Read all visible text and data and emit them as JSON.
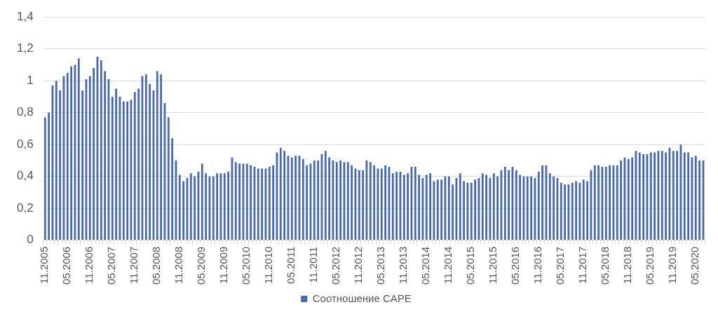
{
  "chart_data": {
    "type": "bar",
    "categories": [
      "11.2005",
      null,
      null,
      null,
      null,
      null,
      "05.2006",
      null,
      null,
      null,
      null,
      null,
      "11.2006",
      null,
      null,
      null,
      null,
      null,
      "05.2007",
      null,
      null,
      null,
      null,
      null,
      "11.2007",
      null,
      null,
      null,
      null,
      null,
      "05.2008",
      null,
      null,
      null,
      null,
      null,
      "11.2008",
      null,
      null,
      null,
      null,
      null,
      "05.2009",
      null,
      null,
      null,
      null,
      null,
      "11.2009",
      null,
      null,
      null,
      null,
      null,
      "05.2010",
      null,
      null,
      null,
      null,
      null,
      "11.2010",
      null,
      null,
      null,
      null,
      null,
      "05.2011",
      null,
      null,
      null,
      null,
      null,
      "11.2011",
      null,
      null,
      null,
      null,
      null,
      "05.2012",
      null,
      null,
      null,
      null,
      null,
      "11.2012",
      null,
      null,
      null,
      null,
      null,
      "05.2013",
      null,
      null,
      null,
      null,
      null,
      "11.2013",
      null,
      null,
      null,
      null,
      null,
      "05.2014",
      null,
      null,
      null,
      null,
      null,
      "11.2014",
      null,
      null,
      null,
      null,
      null,
      "05.2015",
      null,
      null,
      null,
      null,
      null,
      "11.2015",
      null,
      null,
      null,
      null,
      null,
      "05.2016",
      null,
      null,
      null,
      null,
      null,
      "11.2016",
      null,
      null,
      null,
      null,
      null,
      "05.2017",
      null,
      null,
      null,
      null,
      null,
      "11.2017",
      null,
      null,
      null,
      null,
      null,
      "05.2018",
      null,
      null,
      null,
      null,
      null,
      "11.2018",
      null,
      null,
      null,
      null,
      null,
      "05.2019",
      null,
      null,
      null,
      null,
      null,
      "11.2019",
      null,
      null,
      null,
      null,
      null,
      "05.2020",
      null,
      null
    ],
    "series": [
      {
        "name": "Соотношение CAPE",
        "color": "#4a69ad",
        "values": [
          0.77,
          0.8,
          0.97,
          1.0,
          0.94,
          1.03,
          1.05,
          1.09,
          1.1,
          1.14,
          0.94,
          1.01,
          1.03,
          1.08,
          1.15,
          1.13,
          1.06,
          1.01,
          0.9,
          0.95,
          0.9,
          0.87,
          0.87,
          0.88,
          0.93,
          0.95,
          1.03,
          1.04,
          0.98,
          0.94,
          1.06,
          1.04,
          0.86,
          0.77,
          0.64,
          0.5,
          0.41,
          0.37,
          0.39,
          0.42,
          0.4,
          0.43,
          0.48,
          0.42,
          0.4,
          0.4,
          0.42,
          0.42,
          0.42,
          0.43,
          0.52,
          0.49,
          0.48,
          0.48,
          0.48,
          0.47,
          0.46,
          0.45,
          0.45,
          0.45,
          0.46,
          0.47,
          0.55,
          0.58,
          0.56,
          0.53,
          0.52,
          0.53,
          0.53,
          0.51,
          0.47,
          0.48,
          0.5,
          0.5,
          0.54,
          0.56,
          0.52,
          0.5,
          0.49,
          0.5,
          0.49,
          0.49,
          0.47,
          0.45,
          0.44,
          0.44,
          0.5,
          0.49,
          0.47,
          0.45,
          0.45,
          0.47,
          0.46,
          0.42,
          0.43,
          0.43,
          0.41,
          0.42,
          0.46,
          0.46,
          0.41,
          0.39,
          0.41,
          0.42,
          0.37,
          0.38,
          0.38,
          0.4,
          0.4,
          0.35,
          0.39,
          0.42,
          0.37,
          0.36,
          0.36,
          0.38,
          0.39,
          0.42,
          0.41,
          0.39,
          0.42,
          0.4,
          0.44,
          0.46,
          0.44,
          0.46,
          0.44,
          0.41,
          0.4,
          0.4,
          0.4,
          0.39,
          0.43,
          0.47,
          0.47,
          0.42,
          0.4,
          0.39,
          0.36,
          0.35,
          0.35,
          0.36,
          0.37,
          0.36,
          0.38,
          0.37,
          0.44,
          0.47,
          0.47,
          0.46,
          0.46,
          0.47,
          0.47,
          0.47,
          0.5,
          0.52,
          0.51,
          0.52,
          0.56,
          0.55,
          0.54,
          0.54,
          0.55,
          0.55,
          0.56,
          0.56,
          0.55,
          0.58,
          0.56,
          0.56,
          0.6,
          0.55,
          0.55,
          0.52,
          0.53,
          0.5,
          0.5
        ]
      }
    ],
    "ylim": [
      0,
      1.4
    ],
    "yticks": [
      {
        "value": 0,
        "label": "0"
      },
      {
        "value": 0.2,
        "label": "0,2"
      },
      {
        "value": 0.4,
        "label": "0,4"
      },
      {
        "value": 0.6,
        "label": "0,6"
      },
      {
        "value": 0.8,
        "label": "0,8"
      },
      {
        "value": 1,
        "label": "1"
      },
      {
        "value": 1.2,
        "label": "1,2"
      },
      {
        "value": 1.4,
        "label": "1,4"
      }
    ],
    "grid": "y",
    "legend": "bottom"
  }
}
